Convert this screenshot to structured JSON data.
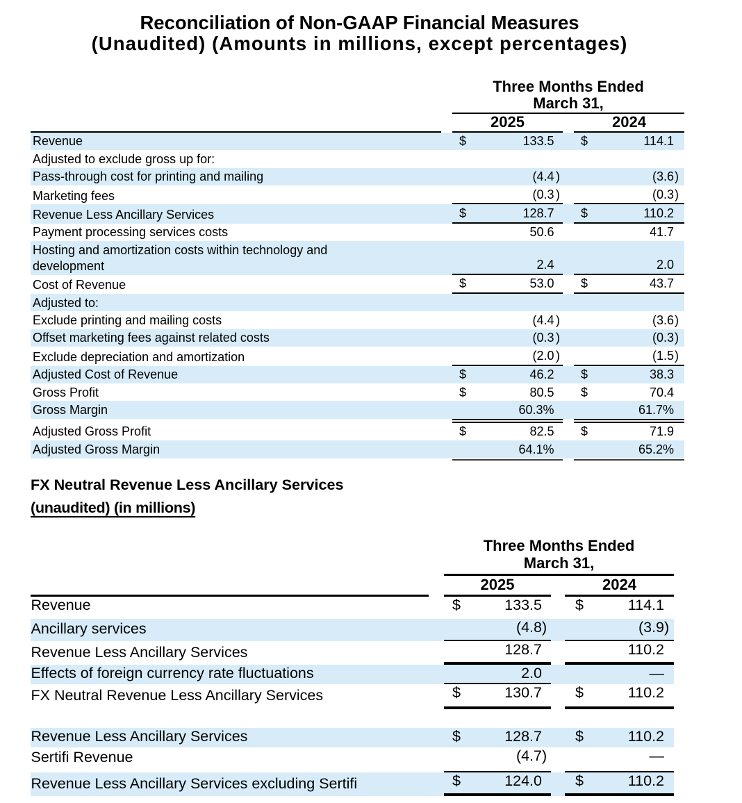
{
  "title": {
    "line1": "Reconciliation of Non-GAAP Financial Measures",
    "line2": "(Unaudited) (Amounts in millions, except percentages)"
  },
  "colors": {
    "row_shade": "#d7ecf8",
    "rule": "#000000",
    "final_rule": "#3d3d3d"
  },
  "table1": {
    "header": {
      "period": "Three Months Ended\nMarch 31,",
      "year1": "2025",
      "year2": "2024"
    },
    "rows": [
      {
        "label": "Revenue",
        "d1": "$",
        "v1": "133.5",
        "d2": "$",
        "v2": "114.1",
        "shade": true,
        "border": ""
      },
      {
        "label": "Adjusted to exclude gross up for:",
        "d1": "",
        "v1": "",
        "d2": "",
        "v2": "",
        "shade": false,
        "border": ""
      },
      {
        "label": "Pass-through cost for printing and mailing",
        "d1": "",
        "v1": "(4.4)",
        "d2": "",
        "v2": "(3.6)",
        "shade": true,
        "border": ""
      },
      {
        "label": "Marketing fees",
        "d1": "",
        "v1": "(0.3)",
        "d2": "",
        "v2": "(0.3)",
        "shade": false,
        "border": "thin"
      },
      {
        "label": "Revenue Less Ancillary Services",
        "d1": "$",
        "v1": "128.7",
        "d2": "$",
        "v2": "110.2",
        "shade": true,
        "border": "thin"
      },
      {
        "label": "Payment processing services costs",
        "d1": "",
        "v1": "50.6",
        "d2": "",
        "v2": "41.7",
        "shade": false,
        "border": ""
      },
      {
        "label": "Hosting and amortization costs within technology and\ndevelopment",
        "d1": "",
        "v1": "2.4",
        "d2": "",
        "v2": "2.0",
        "shade": true,
        "border": "thin"
      },
      {
        "label": "Cost of Revenue",
        "d1": "$",
        "v1": "53.0",
        "d2": "$",
        "v2": "43.7",
        "shade": false,
        "border": "thin"
      },
      {
        "label": "Adjusted to:",
        "d1": "",
        "v1": "",
        "d2": "",
        "v2": "",
        "shade": true,
        "border": ""
      },
      {
        "label": "Exclude printing and mailing costs",
        "d1": "",
        "v1": "(4.4)",
        "d2": "",
        "v2": "(3.6)",
        "shade": false,
        "border": ""
      },
      {
        "label": "Offset marketing fees against related costs",
        "d1": "",
        "v1": "(0.3)",
        "d2": "",
        "v2": "(0.3)",
        "shade": true,
        "border": ""
      },
      {
        "label": "Exclude depreciation and amortization",
        "d1": "",
        "v1": "(2.0)",
        "d2": "",
        "v2": "(1.5)",
        "shade": false,
        "border": "thin"
      },
      {
        "label": "Adjusted Cost of Revenue",
        "d1": "$",
        "v1": "46.2",
        "d2": "$",
        "v2": "38.3",
        "shade": true,
        "border": ""
      },
      {
        "label": "Gross Profit",
        "d1": "$",
        "v1": "80.5",
        "d2": "$",
        "v2": "70.4",
        "shade": false,
        "border": ""
      },
      {
        "label": "Gross Margin",
        "d1": "",
        "v1": "60.3%",
        "d2": "",
        "v2": "61.7%",
        "shade": true,
        "border": "double"
      },
      {
        "label": "Adjusted Gross Profit",
        "d1": "$",
        "v1": "82.5",
        "d2": "$",
        "v2": "71.9",
        "shade": false,
        "border": ""
      },
      {
        "label": "Adjusted Gross Margin",
        "d1": "",
        "v1": "64.1%",
        "d2": "",
        "v2": "65.2%",
        "shade": true,
        "border": "final"
      }
    ]
  },
  "section2": {
    "heading_line1": "FX Neutral Revenue Less Ancillary Services",
    "heading_line2": "(unaudited) (in millions)"
  },
  "table2": {
    "header": {
      "period": "Three Months Ended\nMarch 31,",
      "year1": "2025",
      "year2": "2024"
    },
    "rows": [
      {
        "label": "Revenue",
        "d1": "$",
        "v1": "133.5",
        "d2": "$",
        "v2": "114.1",
        "shade": false,
        "border": ""
      },
      {
        "label": "Ancillary services",
        "d1": "",
        "v1": "(4.8)",
        "d2": "",
        "v2": "(3.9)",
        "shade": true,
        "border": "thin"
      },
      {
        "label": "Revenue Less Ancillary Services",
        "d1": "",
        "v1": "128.7",
        "d2": "",
        "v2": "110.2",
        "shade": false,
        "border": "thick"
      },
      {
        "label": "Effects of foreign currency rate fluctuations",
        "d1": "",
        "v1": "2.0",
        "d2": "",
        "v2": "—",
        "shade": true,
        "border": "thin-left"
      },
      {
        "label": "FX Neutral Revenue Less Ancillary Services",
        "d1": "$",
        "v1": "130.7",
        "d2": "$",
        "v2": "110.2",
        "shade": false,
        "border": "thick"
      },
      {
        "type": "spacer"
      },
      {
        "label": "Revenue Less Ancillary Services",
        "d1": "$",
        "v1": "128.7",
        "d2": "$",
        "v2": "110.2",
        "shade": true,
        "border": ""
      },
      {
        "label": "Sertifi Revenue",
        "d1": "",
        "v1": "(4.7)",
        "d2": "",
        "v2": "—",
        "shade": false,
        "border": "thin"
      },
      {
        "label": "Revenue Less Ancillary Services excluding Sertifi",
        "d1": "$",
        "v1": "124.0",
        "d2": "$",
        "v2": "110.2",
        "shade": true,
        "border": "thick"
      }
    ]
  }
}
